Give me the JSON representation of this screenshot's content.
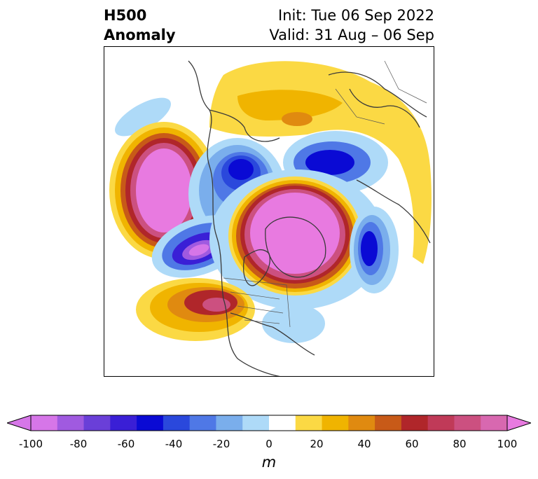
{
  "title": {
    "left_line1": "H500",
    "left_line2": "Anomaly",
    "right_line1": "Init: Tue 06 Sep 2022",
    "right_line2": "Valid: 31 Aug – 06 Sep"
  },
  "colorbar": {
    "units": "m",
    "ticks": [
      "-100",
      "-80",
      "-60",
      "-40",
      "-20",
      "0",
      "20",
      "40",
      "60",
      "80",
      "100"
    ],
    "colors": [
      "#d676e8",
      "#a05ae0",
      "#6a3fd8",
      "#3a1fd6",
      "#0a0ad4",
      "#2a48dc",
      "#4f78e6",
      "#7aaeec",
      "#aedaf8",
      "#ffffff",
      "#fbd944",
      "#f0b400",
      "#e08a10",
      "#c85a18",
      "#b0262a",
      "#c03a58",
      "#cc5080",
      "#d868b0"
    ],
    "extend_low_color": "#d676e8",
    "extend_high_color": "#e87ae0"
  },
  "map": {
    "projection": "north-polar-stereographic",
    "variable": "500 hPa geopotential height anomaly"
  }
}
